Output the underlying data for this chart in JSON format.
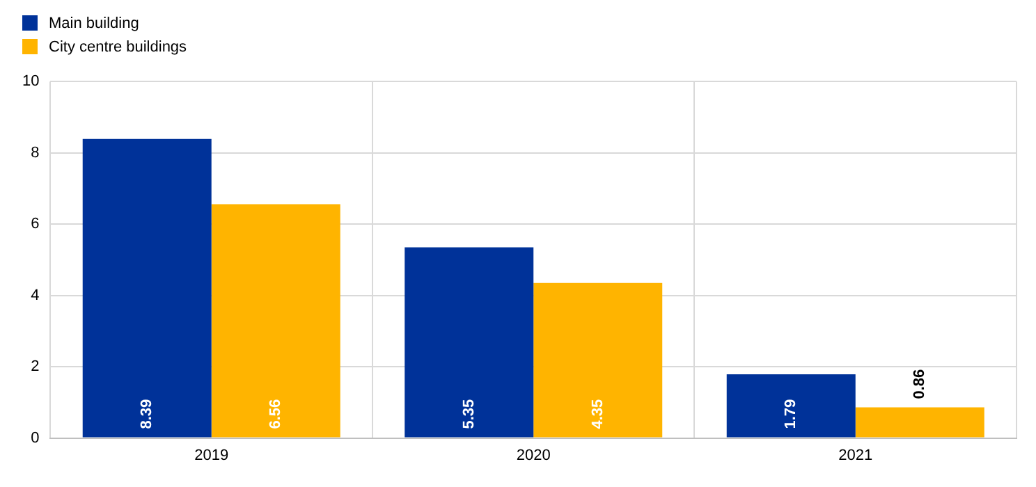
{
  "chart_data": {
    "type": "bar",
    "categories": [
      "2019",
      "2020",
      "2021"
    ],
    "series": [
      {
        "name": "Main building",
        "color": "#003299",
        "values": [
          8.39,
          5.35,
          1.79
        ]
      },
      {
        "name": "City centre buildings",
        "color": "#ffb400",
        "values": [
          6.56,
          4.35,
          0.86
        ]
      }
    ],
    "ylim": [
      0,
      10
    ],
    "yticks": [
      0,
      2,
      4,
      6,
      8,
      10
    ],
    "grid": true,
    "legend": "top left",
    "data_labels": true
  }
}
